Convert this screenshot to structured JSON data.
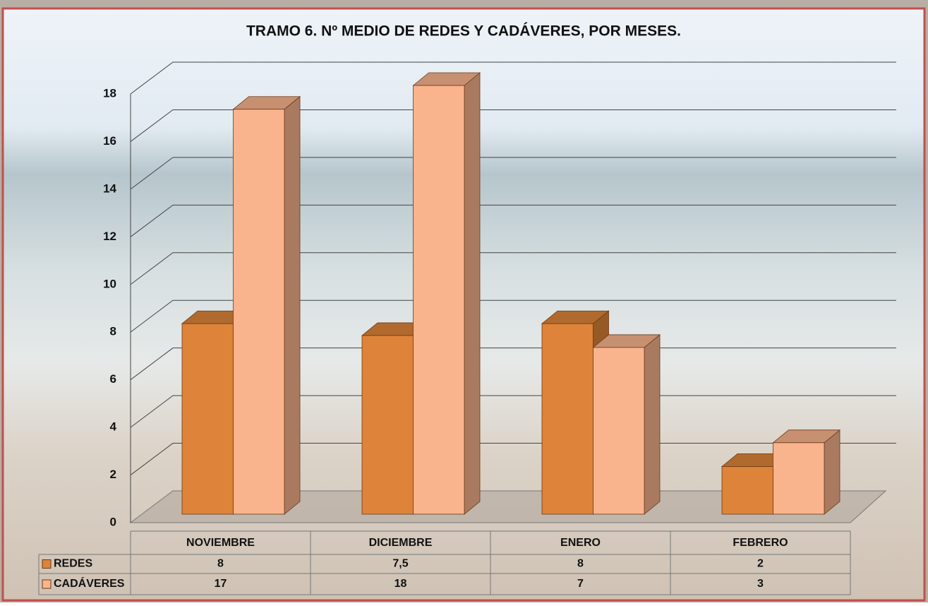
{
  "chart_data": {
    "type": "bar3d",
    "title": "TRAMO 6. Nº MEDIO DE REDES Y CADÁVERES, POR MESES.",
    "categories": [
      "NOVIEMBRE",
      "DICIEMBRE",
      "ENERO",
      "FEBRERO"
    ],
    "series": [
      {
        "name": "REDES",
        "color": "#dd843a",
        "values": [
          8,
          7.5,
          8,
          2
        ],
        "value_labels": [
          "8",
          "7,5",
          "8",
          "2"
        ]
      },
      {
        "name": "CADÁVERES",
        "color": "#f9b48d",
        "values": [
          17,
          18,
          7,
          3
        ]
      }
    ],
    "ylim": [
      0,
      18
    ],
    "yticks": [
      0,
      2,
      4,
      6,
      8,
      10,
      12,
      14,
      16,
      18
    ],
    "grid": true,
    "data_table": true
  }
}
